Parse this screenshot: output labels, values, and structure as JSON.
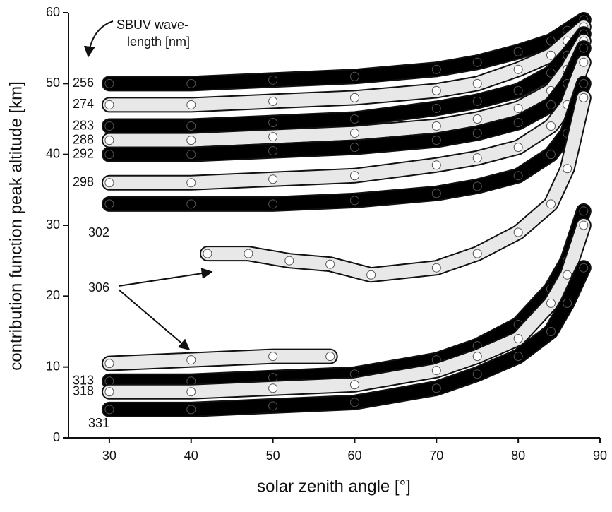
{
  "chart_data": {
    "type": "scatter",
    "x_label": "solar zenith angle [°]",
    "y_label": "contribution function peak altitude [km]",
    "annotation": [
      "SBUV wave-",
      "length [nm]"
    ],
    "xlim": [
      25,
      90
    ],
    "xticks": [
      30,
      40,
      50,
      60,
      70,
      80,
      90
    ],
    "ylim": [
      0,
      60
    ],
    "yticks": [
      0,
      10,
      20,
      30,
      40,
      50,
      60
    ],
    "series": [
      {
        "name": "256",
        "color": "#000000",
        "x": [
          30,
          40,
          50,
          60,
          70,
          75,
          80,
          84,
          86,
          88
        ],
        "values": [
          50,
          50,
          50.5,
          51,
          52,
          53,
          54.5,
          56,
          57.5,
          59
        ]
      },
      {
        "name": "274",
        "color": "#ffffff",
        "x": [
          30,
          40,
          50,
          60,
          70,
          75,
          80,
          84,
          86,
          88
        ],
        "values": [
          47,
          47,
          47.5,
          48,
          49,
          50,
          52,
          54,
          56,
          58
        ]
      },
      {
        "name": "283",
        "color": "#000000",
        "x": [
          30,
          40,
          50,
          60,
          70,
          75,
          80,
          84,
          86,
          88
        ],
        "values": [
          44,
          44,
          44.5,
          45,
          46.5,
          47.5,
          49,
          51.5,
          54,
          57
        ]
      },
      {
        "name": "288",
        "color": "#ffffff",
        "x": [
          30,
          40,
          50,
          60,
          70,
          75,
          80,
          84,
          86,
          88
        ],
        "values": [
          42,
          42,
          42.5,
          43,
          44,
          45,
          46.5,
          49,
          52,
          56
        ]
      },
      {
        "name": "292",
        "color": "#000000",
        "x": [
          30,
          40,
          50,
          60,
          70,
          75,
          80,
          84,
          86,
          88
        ],
        "values": [
          40,
          40,
          40.5,
          41,
          42,
          43,
          44.5,
          47,
          50,
          55
        ]
      },
      {
        "name": "298",
        "color": "#ffffff",
        "x": [
          30,
          40,
          50,
          60,
          70,
          75,
          80,
          84,
          86,
          88
        ],
        "values": [
          36,
          36,
          36.5,
          37,
          38.5,
          39.5,
          41,
          44,
          47,
          53
        ]
      },
      {
        "name": "302",
        "color": "#000000",
        "x": [
          30,
          40,
          50,
          60,
          70,
          75,
          80,
          84,
          86,
          88
        ],
        "values": [
          33,
          33,
          33,
          33.5,
          34.5,
          35.5,
          37,
          40,
          43,
          50
        ]
      },
      {
        "name": "306",
        "color": "#ffffff",
        "x": [
          30,
          40,
          50,
          57,
          null,
          42,
          47,
          52,
          57,
          62,
          70,
          75,
          80,
          84,
          86,
          88
        ],
        "values": [
          10.5,
          11,
          11.5,
          11.5,
          null,
          26,
          26,
          25,
          24.5,
          23,
          24,
          26,
          29,
          33,
          38,
          48
        ]
      },
      {
        "name": "313",
        "color": "#000000",
        "x": [
          30,
          40,
          50,
          60,
          70,
          75,
          80,
          84,
          86,
          88
        ],
        "values": [
          8,
          8,
          8.5,
          9,
          11,
          13,
          16,
          21,
          25,
          32
        ]
      },
      {
        "name": "318",
        "color": "#ffffff",
        "x": [
          30,
          40,
          50,
          60,
          70,
          75,
          80,
          84,
          86,
          88
        ],
        "values": [
          6.5,
          6.5,
          7,
          7.5,
          9.5,
          11.5,
          14,
          19,
          23,
          30
        ]
      },
      {
        "name": "331",
        "color": "#000000",
        "x": [
          30,
          40,
          50,
          60,
          70,
          75,
          80,
          84,
          86,
          88
        ],
        "values": [
          4,
          4,
          4.5,
          5,
          7,
          9,
          11.5,
          15,
          19,
          24
        ]
      }
    ]
  }
}
